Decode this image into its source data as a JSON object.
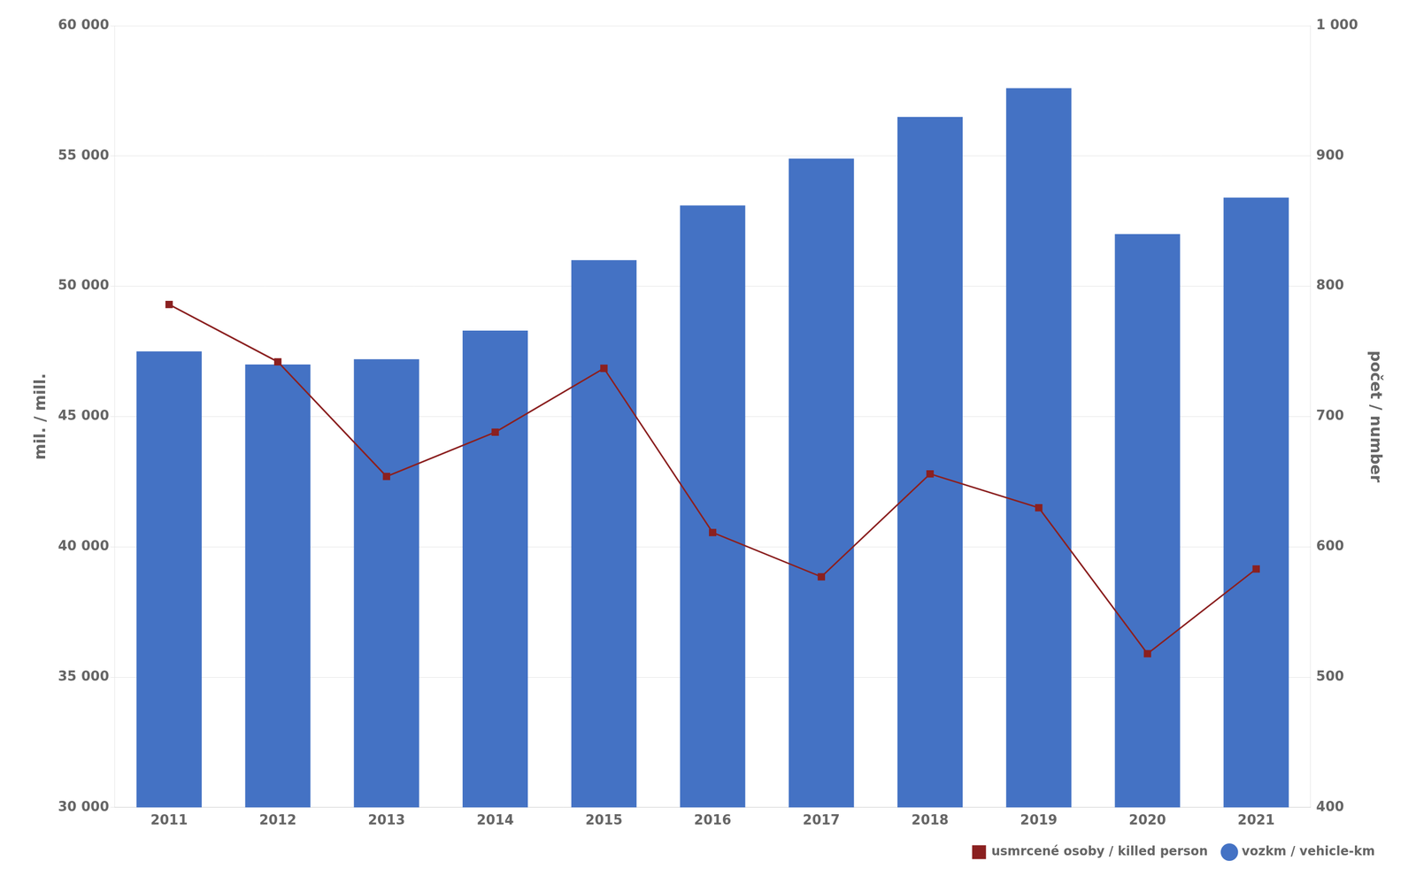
{
  "chart_data": {
    "type": "bar",
    "categories": [
      "2011",
      "2012",
      "2013",
      "2014",
      "2015",
      "2016",
      "2017",
      "2018",
      "2019",
      "2020",
      "2021"
    ],
    "series": [
      {
        "name": "vozkm / vehicle-km",
        "type": "bar",
        "color": "#4472C4",
        "values": [
          47500,
          47000,
          47200,
          48300,
          51000,
          53100,
          54900,
          56500,
          57600,
          52000,
          53400
        ]
      },
      {
        "name": "usmrcené osoby / killed person",
        "type": "line",
        "color": "#8B2020",
        "marker": "square",
        "axis": "y2",
        "values": [
          786,
          742,
          654,
          688,
          737,
          611,
          577,
          656,
          630,
          518,
          583
        ]
      }
    ],
    "ylabel": "mil. / mill.",
    "y2label": "počet / number",
    "ylim": [
      30000,
      60000
    ],
    "yticks": [
      {
        "value": 30000,
        "label": "30 000"
      },
      {
        "value": 35000,
        "label": "35 000"
      },
      {
        "value": 40000,
        "label": "40 000"
      },
      {
        "value": 45000,
        "label": "45 000"
      },
      {
        "value": 50000,
        "label": "50 000"
      },
      {
        "value": 55000,
        "label": "55 000"
      },
      {
        "value": 60000,
        "label": "60 000"
      }
    ],
    "y2lim": [
      400,
      1000
    ],
    "y2ticks": [
      400,
      500,
      600,
      700,
      800,
      900,
      {
        "value": 1000,
        "label": "1 000"
      }
    ],
    "grid": true,
    "legend": "lower right"
  }
}
